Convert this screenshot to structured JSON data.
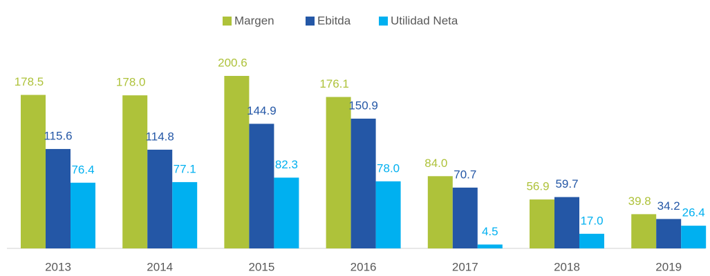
{
  "chart_data": {
    "type": "bar",
    "categories": [
      "2013",
      "2014",
      "2015",
      "2016",
      "2017",
      "2018",
      "2019"
    ],
    "series": [
      {
        "name": "Margen",
        "color": "#aec23a",
        "values": [
          178.5,
          178.0,
          200.6,
          176.1,
          84.0,
          56.9,
          39.8
        ],
        "value_labels": [
          "178.5",
          "178.0",
          "200.6",
          "176.1",
          "84.0",
          "56.9",
          "39.8"
        ]
      },
      {
        "name": "Ebitda",
        "color": "#2457a6",
        "values": [
          115.6,
          114.8,
          144.9,
          150.9,
          70.7,
          59.7,
          34.2
        ],
        "value_labels": [
          "115.6",
          "114.8",
          "144.9",
          "150.9",
          "70.7",
          "59.7",
          "34.2"
        ]
      },
      {
        "name": "Utilidad Neta",
        "color": "#00b0f0",
        "values": [
          76.4,
          77.1,
          82.3,
          78.0,
          4.5,
          17.0,
          26.4
        ],
        "value_labels": [
          "76.4",
          "77.1",
          "82.3",
          "78.0",
          "4.5",
          "17.0",
          "26.4"
        ]
      }
    ],
    "legend": "top"
  }
}
